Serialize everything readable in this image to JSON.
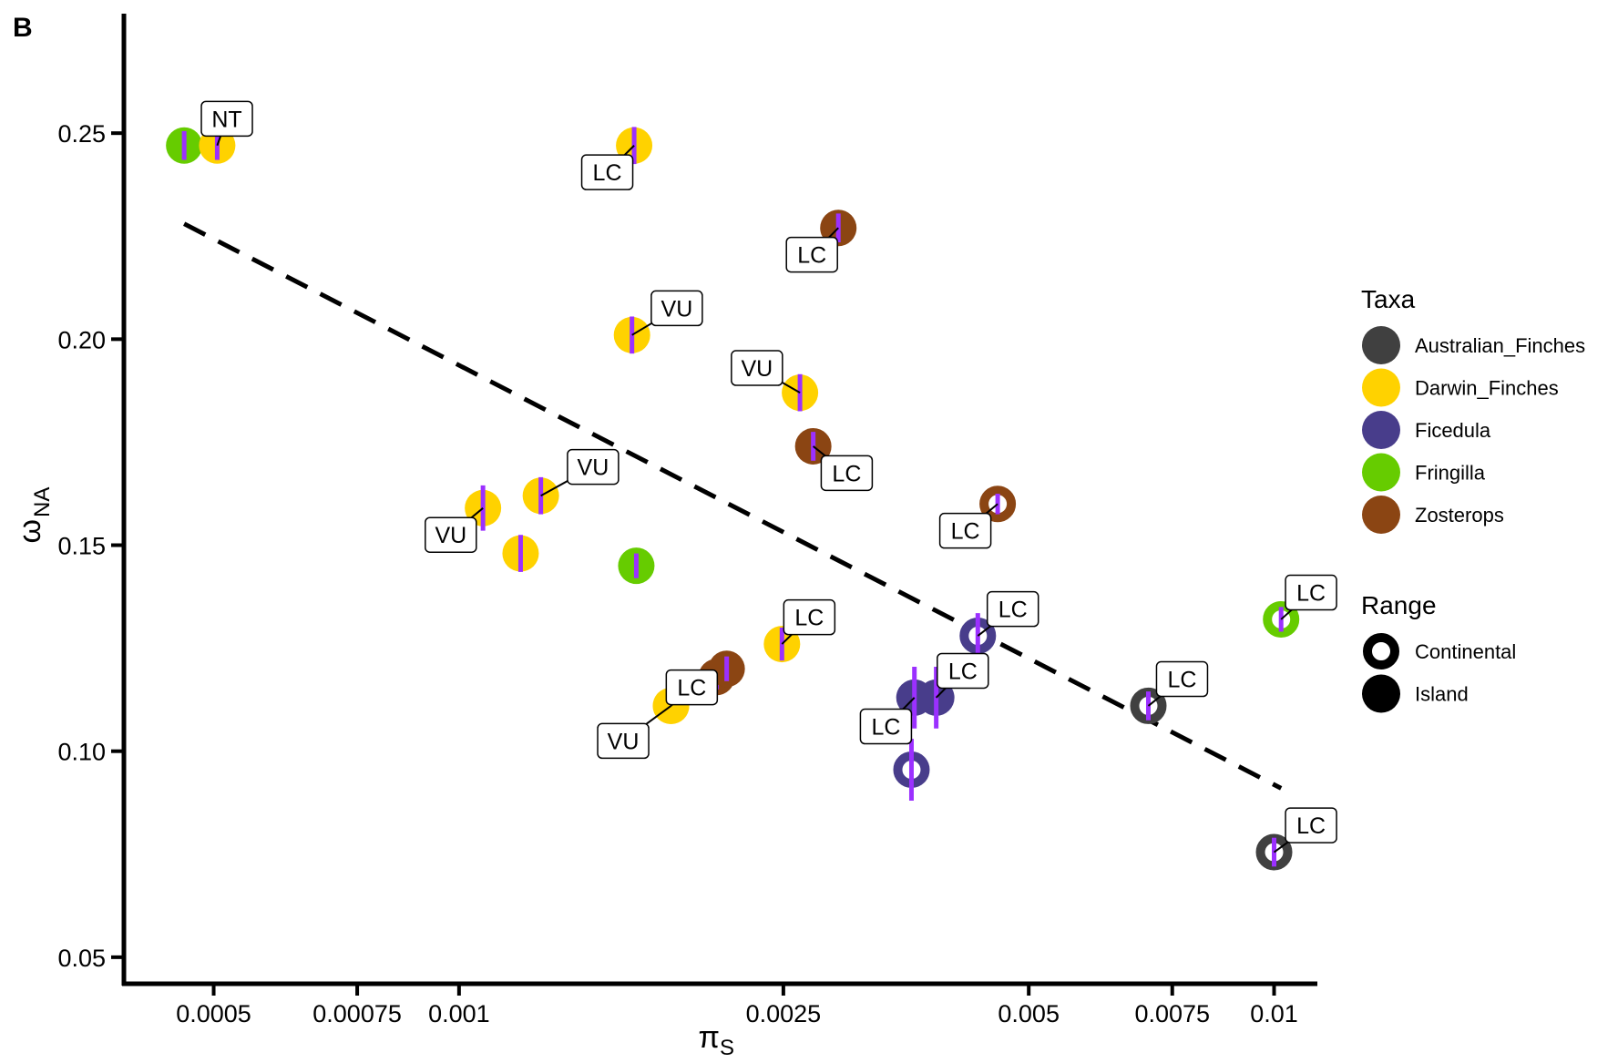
{
  "chart_data": {
    "type": "scatter",
    "panel_label": "B",
    "xlabel": "π",
    "xlabel_sub": "S",
    "ylabel": "ω",
    "ylabel_sub": "NA",
    "x_scale": "log",
    "xlim": [
      0.00039,
      0.0113
    ],
    "ylim": [
      0.044,
      0.279
    ],
    "x_ticks": [
      {
        "value": 0.0005,
        "label": "0.0005"
      },
      {
        "value": 0.00075,
        "label": "0.00075"
      },
      {
        "value": 0.001,
        "label": "0.001"
      },
      {
        "value": 0.0025,
        "label": "0.0025"
      },
      {
        "value": 0.005,
        "label": "0.005"
      },
      {
        "value": 0.0075,
        "label": "0.0075"
      },
      {
        "value": 0.01,
        "label": "0.01"
      }
    ],
    "y_ticks": [
      {
        "value": 0.05,
        "label": "0.05"
      },
      {
        "value": 0.1,
        "label": "0.10"
      },
      {
        "value": 0.15,
        "label": "0.15"
      },
      {
        "value": 0.2,
        "label": "0.20"
      },
      {
        "value": 0.25,
        "label": "0.25"
      }
    ],
    "grid": false,
    "trend_line": {
      "style": "dashed",
      "from": [
        0.00046,
        0.228
      ],
      "to": [
        0.0102,
        0.091
      ]
    },
    "legend": {
      "placement": "right",
      "taxa_title": "Taxa",
      "taxa": [
        {
          "name": "Australian_Finches",
          "color": "#404040"
        },
        {
          "name": "Darwin_Finches",
          "color": "#FFD200"
        },
        {
          "name": "Ficedula",
          "color": "#483D8B"
        },
        {
          "name": "Fringilla",
          "color": "#66CC00"
        },
        {
          "name": "Zosterops",
          "color": "#8B4513"
        }
      ],
      "range_title": "Range",
      "range": [
        {
          "name": "Continental",
          "shape": "ring"
        },
        {
          "name": "Island",
          "shape": "filled"
        }
      ]
    },
    "error_bar_color": "#9B30FF",
    "points": [
      {
        "taxon": "Fringilla",
        "range": "Island",
        "x": 0.00046,
        "y": 0.247,
        "err": 0.0035,
        "label": ""
      },
      {
        "taxon": "Darwin_Finches",
        "range": "Island",
        "x": 0.000505,
        "y": 0.247,
        "err": 0.0035,
        "label": "NT",
        "lx": 0.000519,
        "ly": 0.2535
      },
      {
        "taxon": "Darwin_Finches",
        "range": "Island",
        "x": 0.00164,
        "y": 0.247,
        "err": 0.0045,
        "label": "LC",
        "lx": 0.00152,
        "ly": 0.2405
      },
      {
        "taxon": "Zosterops",
        "range": "Island",
        "x": 0.00292,
        "y": 0.227,
        "err": 0.0035,
        "label": "LC",
        "lx": 0.00271,
        "ly": 0.2205
      },
      {
        "taxon": "Darwin_Finches",
        "range": "Island",
        "x": 0.00163,
        "y": 0.201,
        "err": 0.0045,
        "label": "VU",
        "lx": 0.00185,
        "ly": 0.2075
      },
      {
        "taxon": "Darwin_Finches",
        "range": "Island",
        "x": 0.00262,
        "y": 0.187,
        "err": 0.0045,
        "label": "VU",
        "lx": 0.00232,
        "ly": 0.193
      },
      {
        "taxon": "Zosterops",
        "range": "Island",
        "x": 0.00272,
        "y": 0.174,
        "err": 0.0035,
        "label": "LC",
        "lx": 0.00299,
        "ly": 0.1675
      },
      {
        "taxon": "Darwin_Finches",
        "range": "Island",
        "x": 0.00126,
        "y": 0.162,
        "err": 0.0045,
        "label": "VU",
        "lx": 0.00146,
        "ly": 0.169
      },
      {
        "taxon": "Darwin_Finches",
        "range": "Island",
        "x": 0.00107,
        "y": 0.159,
        "err": 0.0055,
        "label": "VU",
        "lx": 0.000977,
        "ly": 0.1525
      },
      {
        "taxon": "Zosterops",
        "range": "Continental",
        "x": 0.00458,
        "y": 0.16,
        "err": 0.0025,
        "label": "LC",
        "lx": 0.00418,
        "ly": 0.1535
      },
      {
        "taxon": "Darwin_Finches",
        "range": "Island",
        "x": 0.00119,
        "y": 0.148,
        "err": 0.0045,
        "label": "",
        "lx": null,
        "ly": null
      },
      {
        "taxon": "Fringilla",
        "range": "Island",
        "x": 0.00165,
        "y": 0.145,
        "err": 0.003,
        "label": ""
      },
      {
        "taxon": "Ficedula",
        "range": "Continental",
        "x": 0.00433,
        "y": 0.128,
        "err": 0.0055,
        "label": "LC",
        "lx": 0.00478,
        "ly": 0.1345
      },
      {
        "taxon": "Fringilla",
        "range": "Continental",
        "x": 0.0102,
        "y": 0.132,
        "err": 0.003,
        "label": "LC",
        "lx": 0.0111,
        "ly": 0.1385
      },
      {
        "taxon": "Darwin_Finches",
        "range": "Island",
        "x": 0.00249,
        "y": 0.126,
        "err": 0.004,
        "label": "LC",
        "lx": 0.00269,
        "ly": 0.1325
      },
      {
        "taxon": "Zosterops",
        "range": "Island",
        "x": 0.00207,
        "y": 0.118,
        "err": 0.003,
        "label": ""
      },
      {
        "taxon": "Zosterops",
        "range": "Island",
        "x": 0.00213,
        "y": 0.12,
        "err": 0.003,
        "label": ""
      },
      {
        "taxon": "Ficedula",
        "range": "Island",
        "x": 0.00385,
        "y": 0.113,
        "err": 0.0075,
        "label": "LC",
        "lx": 0.00415,
        "ly": 0.1195
      },
      {
        "taxon": "Ficedula",
        "range": "Island",
        "x": 0.00362,
        "y": 0.113,
        "err": 0.0075,
        "label": "LC",
        "lx": 0.00334,
        "ly": 0.106
      },
      {
        "taxon": "Darwin_Finches",
        "range": "Island",
        "x": 0.00182,
        "y": 0.111,
        "err": 0.004,
        "label": "LC",
        "lx": 0.00193,
        "ly": 0.1155
      },
      {
        "taxon": "Darwin_Finches",
        "range": "Island",
        "x": 0.00182,
        "y": 0.111,
        "err": 0.0,
        "label": "VU",
        "lx": 0.00159,
        "ly": 0.1025
      },
      {
        "taxon": "Australian_Finches",
        "range": "Continental",
        "x": 0.00701,
        "y": 0.111,
        "err": 0.0035,
        "label": "LC",
        "lx": 0.00771,
        "ly": 0.1175
      },
      {
        "taxon": "Ficedula",
        "range": "Continental",
        "x": 0.00359,
        "y": 0.0955,
        "err": 0.0075,
        "label": ""
      },
      {
        "taxon": "Australian_Finches",
        "range": "Continental",
        "x": 0.01,
        "y": 0.0755,
        "err": 0.0035,
        "label": "LC",
        "lx": 0.0111,
        "ly": 0.082
      }
    ]
  }
}
